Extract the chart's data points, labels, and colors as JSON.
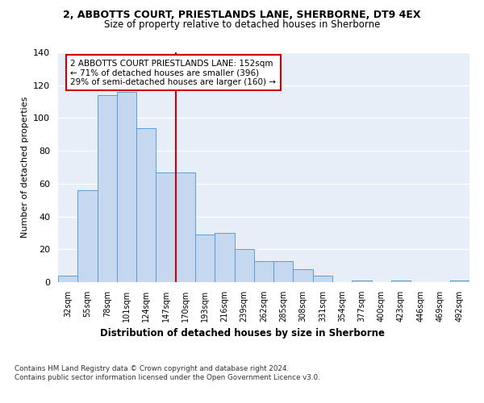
{
  "title1": "2, ABBOTTS COURT, PRIESTLANDS LANE, SHERBORNE, DT9 4EX",
  "title2": "Size of property relative to detached houses in Sherborne",
  "xlabel": "Distribution of detached houses by size in Sherborne",
  "ylabel": "Number of detached properties",
  "bar_labels": [
    "32sqm",
    "55sqm",
    "78sqm",
    "101sqm",
    "124sqm",
    "147sqm",
    "170sqm",
    "193sqm",
    "216sqm",
    "239sqm",
    "262sqm",
    "285sqm",
    "308sqm",
    "331sqm",
    "354sqm",
    "377sqm",
    "400sqm",
    "423sqm",
    "446sqm",
    "469sqm",
    "492sqm"
  ],
  "bar_values": [
    4,
    56,
    114,
    116,
    94,
    67,
    67,
    29,
    30,
    20,
    13,
    13,
    8,
    4,
    0,
    1,
    0,
    1,
    0,
    0,
    1
  ],
  "bar_color": "#c5d8f0",
  "bar_edge_color": "#5b9bd5",
  "red_line_color": "#cc0000",
  "annotation_box_edge": "#cc0000",
  "background_color": "#e8eef7",
  "ylim": [
    0,
    140
  ],
  "yticks": [
    0,
    20,
    40,
    60,
    80,
    100,
    120,
    140
  ],
  "annotation_line1": "2 ABBOTTS COURT PRIESTLANDS LANE: 152sqm",
  "annotation_line2": "← 71% of detached houses are smaller (396)",
  "annotation_line3": "29% of semi-detached houses are larger (160) →",
  "footer1": "Contains HM Land Registry data © Crown copyright and database right 2024.",
  "footer2": "Contains public sector information licensed under the Open Government Licence v3.0."
}
